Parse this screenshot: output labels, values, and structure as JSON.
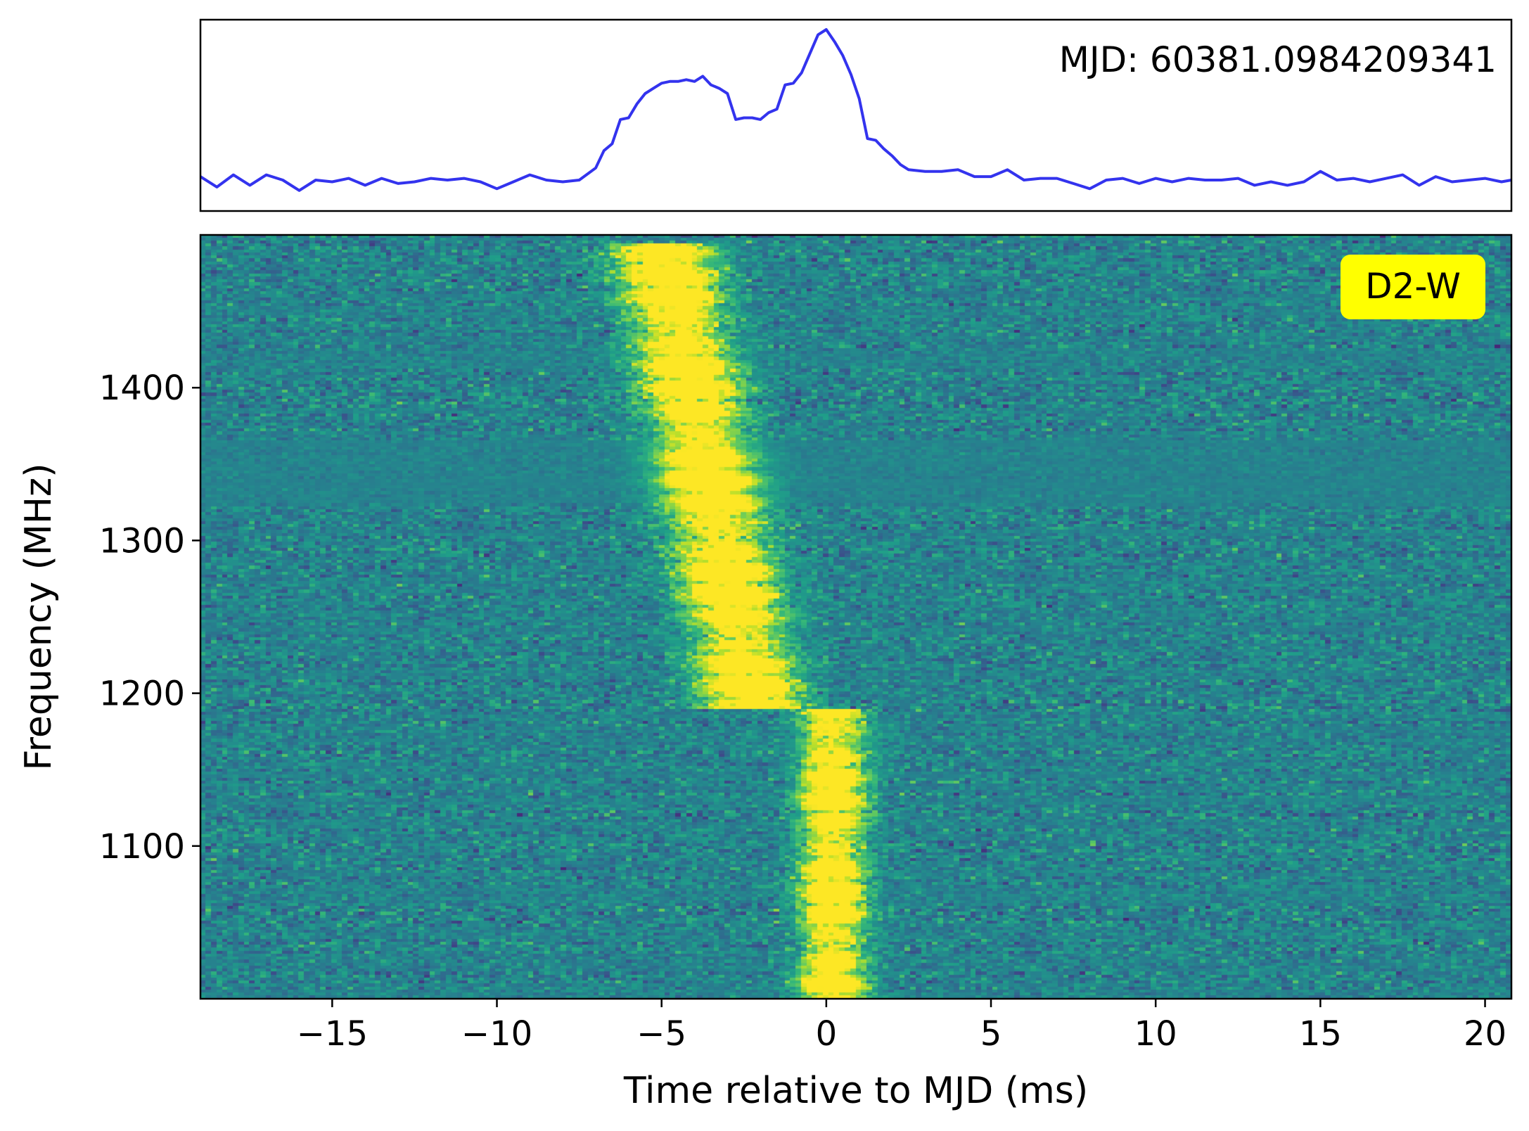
{
  "chart_data": [
    {
      "type": "line",
      "panel": "profile",
      "annotation": "MJD: 60381.0984209341",
      "color": "#3333ee",
      "x_range": [
        -19.0,
        20.8
      ],
      "axis_ticks": "hidden",
      "x": [
        -19.0,
        -18.5,
        -18.0,
        -17.5,
        -17.0,
        -16.5,
        -16.0,
        -15.5,
        -15.0,
        -14.5,
        -14.0,
        -13.5,
        -13.0,
        -12.5,
        -12.0,
        -11.5,
        -11.0,
        -10.5,
        -10.0,
        -9.5,
        -9.0,
        -8.5,
        -8.0,
        -7.5,
        -7.0,
        -6.75,
        -6.5,
        -6.25,
        -6.0,
        -5.75,
        -5.5,
        -5.25,
        -5.0,
        -4.75,
        -4.5,
        -4.25,
        -4.0,
        -3.75,
        -3.5,
        -3.25,
        -3.0,
        -2.75,
        -2.5,
        -2.25,
        -2.0,
        -1.75,
        -1.5,
        -1.25,
        -1.0,
        -0.75,
        -0.5,
        -0.25,
        0.0,
        0.25,
        0.5,
        0.75,
        1.0,
        1.25,
        1.5,
        1.75,
        2.0,
        2.25,
        2.5,
        3.0,
        3.5,
        4.0,
        4.5,
        5.0,
        5.5,
        6.0,
        6.5,
        7.0,
        7.5,
        8.0,
        8.5,
        9.0,
        9.5,
        10.0,
        10.5,
        11.0,
        11.5,
        12.0,
        12.5,
        13.0,
        13.5,
        14.0,
        14.5,
        15.0,
        15.5,
        16.0,
        16.5,
        17.0,
        17.5,
        18.0,
        18.5,
        19.0,
        19.5,
        20.0,
        20.5,
        20.8
      ],
      "y": [
        0.15,
        0.09,
        0.16,
        0.1,
        0.16,
        0.13,
        0.07,
        0.13,
        0.12,
        0.14,
        0.1,
        0.14,
        0.11,
        0.12,
        0.14,
        0.13,
        0.14,
        0.12,
        0.08,
        0.12,
        0.16,
        0.13,
        0.12,
        0.13,
        0.2,
        0.3,
        0.34,
        0.48,
        0.49,
        0.57,
        0.63,
        0.66,
        0.69,
        0.7,
        0.7,
        0.71,
        0.7,
        0.73,
        0.68,
        0.66,
        0.63,
        0.48,
        0.49,
        0.49,
        0.48,
        0.52,
        0.54,
        0.68,
        0.69,
        0.75,
        0.86,
        0.97,
        1.0,
        0.93,
        0.85,
        0.74,
        0.6,
        0.37,
        0.36,
        0.31,
        0.27,
        0.22,
        0.19,
        0.18,
        0.18,
        0.19,
        0.15,
        0.15,
        0.19,
        0.13,
        0.14,
        0.14,
        0.11,
        0.08,
        0.13,
        0.14,
        0.11,
        0.14,
        0.12,
        0.14,
        0.13,
        0.13,
        0.14,
        0.1,
        0.12,
        0.1,
        0.12,
        0.18,
        0.13,
        0.14,
        0.12,
        0.14,
        0.16,
        0.1,
        0.15,
        0.12,
        0.13,
        0.14,
        0.12,
        0.13
      ]
    },
    {
      "type": "heatmap",
      "panel": "dynamic-spectrum",
      "colormap": "viridis",
      "badge_label": "D2-W",
      "badge_color": "#ffff00",
      "xlabel": "Time relative to MJD (ms)",
      "ylabel": "Frequency (MHz)",
      "xlim": [
        -19.0,
        20.8
      ],
      "ylim": [
        1000,
        1500
      ],
      "x_ticks": [
        -15,
        -10,
        -5,
        0,
        5,
        10,
        15,
        20
      ],
      "x_tick_labels": [
        "−15",
        "−10",
        "−5",
        "0",
        "5",
        "10",
        "15",
        "20"
      ],
      "y_ticks": [
        1100,
        1200,
        1300,
        1400
      ],
      "y_tick_labels": [
        "1100",
        "1200",
        "1300",
        "1400"
      ],
      "components": [
        {
          "name": "first",
          "freq_range": [
            1190,
            1495
          ],
          "time_center_ms": -5.0,
          "time_width_ms": 3.0
        },
        {
          "name": "second",
          "freq_range": [
            1000,
            1190
          ],
          "time_center_ms": 0.2,
          "time_width_ms": 2.0
        }
      ]
    }
  ]
}
